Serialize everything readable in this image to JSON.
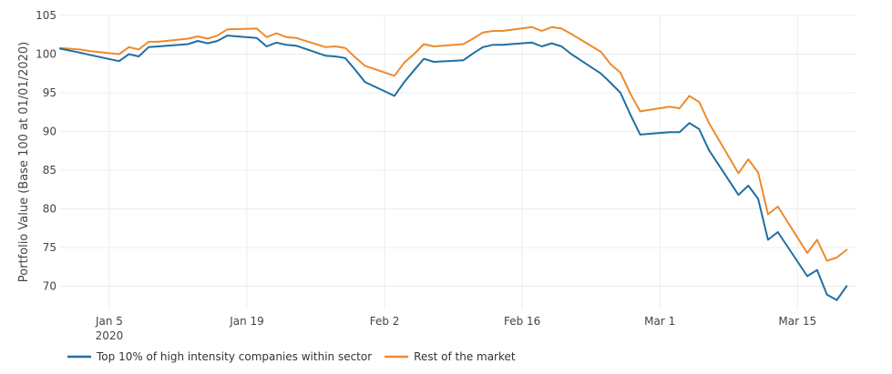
{
  "chart_data": {
    "type": "line",
    "ylabel": "Portfolio Value (Base 100 at 01/01/2020)",
    "xlabel": "",
    "ylim": [
      67,
      105
    ],
    "y_ticks": [
      70,
      75,
      80,
      85,
      90,
      95,
      100,
      105
    ],
    "x_range": [
      "2019-12-31",
      "2020-03-21"
    ],
    "x_ticks": [
      {
        "date": "2020-01-05",
        "label": "Jan 5",
        "sublabel": "2020"
      },
      {
        "date": "2020-01-19",
        "label": "Jan 19",
        "sublabel": ""
      },
      {
        "date": "2020-02-02",
        "label": "Feb 2",
        "sublabel": ""
      },
      {
        "date": "2020-02-16",
        "label": "Feb 16",
        "sublabel": ""
      },
      {
        "date": "2020-03-01",
        "label": "Mar 1",
        "sublabel": ""
      },
      {
        "date": "2020-03-15",
        "label": "Mar 15",
        "sublabel": ""
      }
    ],
    "grid": true,
    "legend_position": "bottom-left",
    "colors": {
      "series_1": "#1f6fa3",
      "series_2": "#ee8a2c",
      "grid": "#ececec"
    },
    "x": [
      "2019-12-31",
      "2020-01-02",
      "2020-01-03",
      "2020-01-06",
      "2020-01-07",
      "2020-01-08",
      "2020-01-09",
      "2020-01-10",
      "2020-01-13",
      "2020-01-14",
      "2020-01-15",
      "2020-01-16",
      "2020-01-17",
      "2020-01-20",
      "2020-01-21",
      "2020-01-22",
      "2020-01-23",
      "2020-01-24",
      "2020-01-27",
      "2020-01-28",
      "2020-01-29",
      "2020-01-30",
      "2020-01-31",
      "2020-02-03",
      "2020-02-04",
      "2020-02-05",
      "2020-02-06",
      "2020-02-07",
      "2020-02-10",
      "2020-02-11",
      "2020-02-12",
      "2020-02-13",
      "2020-02-14",
      "2020-02-17",
      "2020-02-18",
      "2020-02-19",
      "2020-02-20",
      "2020-02-21",
      "2020-02-24",
      "2020-02-25",
      "2020-02-26",
      "2020-02-27",
      "2020-02-28",
      "2020-03-02",
      "2020-03-03",
      "2020-03-04",
      "2020-03-05",
      "2020-03-06",
      "2020-03-09",
      "2020-03-10",
      "2020-03-11",
      "2020-03-12",
      "2020-03-13",
      "2020-03-16",
      "2020-03-17",
      "2020-03-18",
      "2020-03-19",
      "2020-03-20"
    ],
    "series": [
      {
        "name": "Top 10% of high intensity companies within sector",
        "color": "#1f6fa3",
        "values": [
          100.7,
          100.2,
          99.9,
          99.1,
          100.0,
          99.7,
          100.9,
          101.0,
          101.3,
          101.7,
          101.4,
          101.7,
          102.4,
          102.1,
          101.0,
          101.5,
          101.2,
          101.1,
          99.8,
          99.7,
          99.5,
          98.0,
          96.4,
          94.6,
          96.4,
          97.9,
          99.4,
          99.0,
          99.2,
          100.1,
          100.9,
          101.2,
          101.2,
          101.5,
          101.0,
          101.4,
          101.0,
          100.0,
          97.5,
          96.3,
          95.0,
          92.2,
          89.6,
          89.9,
          89.9,
          91.1,
          90.3,
          87.6,
          81.8,
          83.0,
          81.3,
          76.0,
          77.0,
          71.3,
          72.1,
          68.9,
          68.2,
          70.0
        ]
      },
      {
        "name": "Rest of the market",
        "color": "#ee8a2c",
        "values": [
          100.8,
          100.6,
          100.4,
          100.0,
          100.9,
          100.6,
          101.6,
          101.6,
          102.0,
          102.3,
          102.0,
          102.4,
          103.2,
          103.3,
          102.2,
          102.7,
          102.2,
          102.1,
          100.9,
          101.0,
          100.8,
          99.6,
          98.5,
          97.2,
          98.9,
          100.0,
          101.3,
          101.0,
          101.3,
          102.0,
          102.8,
          103.0,
          103.0,
          103.5,
          103.0,
          103.5,
          103.3,
          102.6,
          100.3,
          98.7,
          97.6,
          94.9,
          92.6,
          93.2,
          93.0,
          94.6,
          93.8,
          91.1,
          84.6,
          86.4,
          84.7,
          79.3,
          80.3,
          74.3,
          76.0,
          73.3,
          73.7,
          74.7
        ]
      }
    ]
  }
}
